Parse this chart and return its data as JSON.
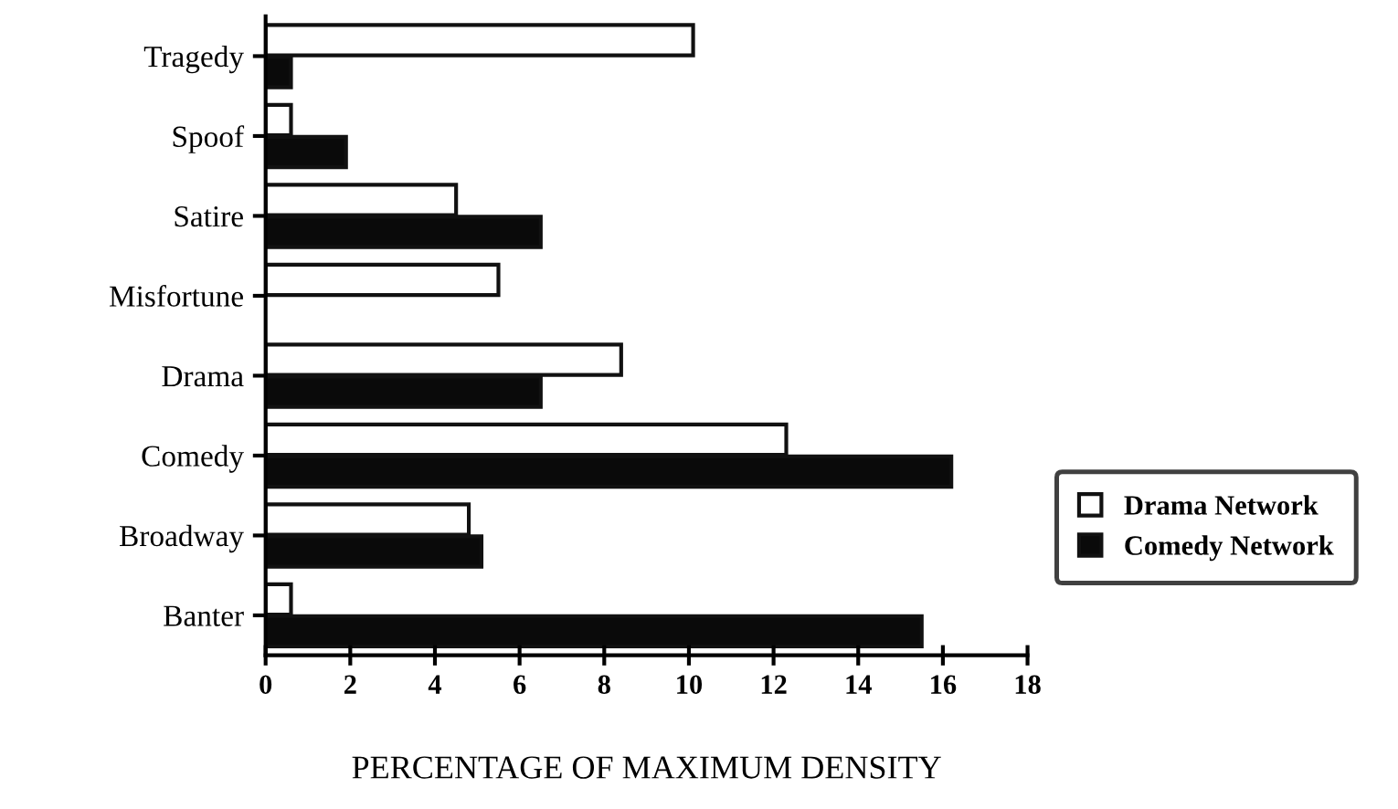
{
  "chart_data": {
    "type": "bar",
    "orientation": "horizontal",
    "xlabel": "PERCENTAGE OF MAXIMUM DENSITY",
    "categories": [
      "Tragedy",
      "Spoof",
      "Satire",
      "Misfortune",
      "Drama",
      "Comedy",
      "Broadway",
      "Banter"
    ],
    "series": [
      {
        "name": "Drama Network",
        "color": "#ffffff",
        "values": [
          10.1,
          0.6,
          4.5,
          5.5,
          8.4,
          12.3,
          4.8,
          0.6
        ]
      },
      {
        "name": "Comedy Network",
        "color": "#0a0a0a",
        "values": [
          0.6,
          1.9,
          6.5,
          null,
          6.5,
          16.2,
          5.1,
          15.5
        ]
      }
    ],
    "xlim": [
      0,
      18
    ],
    "xticks": [
      0,
      2,
      4,
      6,
      8,
      10,
      12,
      14,
      16,
      18
    ],
    "grid": false,
    "legend": "right"
  }
}
